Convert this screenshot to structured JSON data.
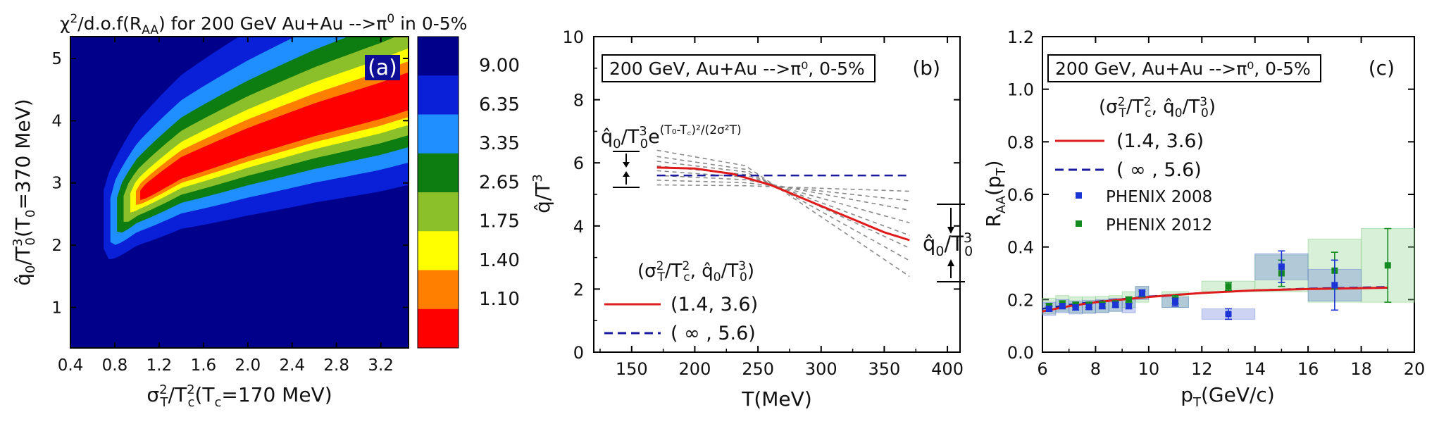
{
  "panel_a": {
    "title_chi": "χ",
    "title_rest": "/d.o.f(R",
    "title_sub": "AA",
    "title_tail": ") for 200 GeV Au+Au -->π",
    "title_sup0": "0",
    "title_end": " in 0-5%",
    "panel_label": "(a)",
    "xlabel": "σ²T/T²c(Tc=170 MeV)",
    "ylabel": "q̂0/T³0(T0=370 MeV)",
    "xticks": [
      "0.4",
      "0.8",
      "1.2",
      "1.6",
      "2.0",
      "2.4",
      "2.8",
      "3.2"
    ],
    "yticks": [
      "1",
      "2",
      "3",
      "4",
      "5"
    ],
    "colorbar_labels": [
      "9.00",
      "6.35",
      "3.35",
      "2.65",
      "1.75",
      "1.40",
      "1.10"
    ],
    "colorbar_colors": [
      "#00008b",
      "#0a1fd8",
      "#1f8fff",
      "#0d7d12",
      "#8cc02a",
      "#ffff00",
      "#ff8000",
      "#ff0000"
    ]
  },
  "panel_b": {
    "box_label": "200 GeV, Au+Au -->π⁰, 0-5%",
    "panel_label": "(b)",
    "xlabel": "T(MeV)",
    "ylabel": "q̂/T³",
    "xticks": [
      "150",
      "200",
      "250",
      "300",
      "350",
      "400"
    ],
    "yticks": [
      "0",
      "2",
      "4",
      "6",
      "8",
      "10"
    ],
    "annotation_left": "q̂0/T³0e(T0-Tc)²/(2σ²T)",
    "annotation_right": "q̂0/T³0",
    "legend_title": "(σ²T/T²c, q̂0/T³0)",
    "legend_items": [
      "(1.4, 3.6)",
      "( ∞ , 5.6)"
    ]
  },
  "panel_c": {
    "box_label": "200 GeV, Au+Au -->π⁰, 0-5%",
    "panel_label": "(c)",
    "xlabel": "pT(GeV/c)",
    "ylabel": "RAA(pT)",
    "xticks": [
      "6",
      "8",
      "10",
      "12",
      "14",
      "16",
      "18",
      "20"
    ],
    "yticks": [
      "0.0",
      "0.2",
      "0.4",
      "0.6",
      "0.8",
      "1.0",
      "1.2"
    ],
    "legend_title": "(σ²T/T²c, q̂0/T³0)",
    "legend_items": [
      "(1.4, 3.6)",
      "( ∞ , 5.6)",
      "PHENIX 2008",
      "PHENIX 2012"
    ]
  },
  "chart_data": [
    {
      "type": "heatmap",
      "title": "χ²/d.o.f(RAA) for 200 GeV Au+Au -->π0 in 0-5%",
      "xlabel": "σ²T/T²c(Tc=170 MeV)",
      "ylabel": "q̂0/T³0(T0=370 MeV)",
      "xlim": [
        0.4,
        3.45
      ],
      "ylim": [
        0.35,
        5.35
      ],
      "colorbar_levels": [
        1.1,
        1.4,
        1.75,
        2.65,
        3.35,
        6.35,
        9.0
      ],
      "minimum_valley": {
        "x": [
          0.75,
          1.0,
          1.4,
          2.0,
          2.6,
          3.2,
          3.45
        ],
        "y": [
          2.3,
          2.75,
          3.2,
          3.6,
          3.95,
          4.25,
          4.4
        ]
      }
    },
    {
      "type": "line",
      "xlabel": "T(MeV)",
      "ylabel": "q̂/T³",
      "xlim": [
        120,
        410
      ],
      "ylim": [
        0,
        10
      ],
      "series": [
        {
          "name": "(1.4, 3.6)",
          "x": [
            170,
            200,
            230,
            260,
            290,
            320,
            350,
            370
          ],
          "y": [
            5.85,
            5.82,
            5.65,
            5.3,
            4.8,
            4.3,
            3.8,
            3.55
          ]
        },
        {
          "name": "( ∞ , 5.6)",
          "x": [
            170,
            370
          ],
          "y": [
            5.6,
            5.6
          ]
        }
      ],
      "grey_band_curves": [
        {
          "y0": 6.4,
          "y1": 2.4
        },
        {
          "y0": 6.2,
          "y1": 2.9
        },
        {
          "y0": 6.05,
          "y1": 3.3
        },
        {
          "y0": 5.9,
          "y1": 3.7
        },
        {
          "y0": 5.75,
          "y1": 4.1
        },
        {
          "y0": 5.6,
          "y1": 4.5
        },
        {
          "y0": 5.45,
          "y1": 4.8
        },
        {
          "y0": 5.3,
          "y1": 5.1
        }
      ]
    },
    {
      "type": "scatter",
      "xlabel": "pT(GeV/c)",
      "ylabel": "RAA(pT)",
      "xlim": [
        6,
        20
      ],
      "ylim": [
        0,
        1.2
      ],
      "series": [
        {
          "name": "(1.4, 3.6)",
          "x": [
            6,
            7,
            8,
            9,
            10,
            12,
            14,
            16,
            19
          ],
          "y": [
            0.155,
            0.175,
            0.19,
            0.2,
            0.21,
            0.225,
            0.235,
            0.24,
            0.245
          ]
        },
        {
          "name": "( ∞ , 5.6)",
          "x": [
            6,
            7,
            8,
            9,
            10,
            12,
            14,
            16,
            19
          ],
          "y": [
            0.165,
            0.18,
            0.192,
            0.202,
            0.212,
            0.225,
            0.235,
            0.242,
            0.248
          ]
        },
        {
          "name": "PHENIX 2008",
          "x": [
            6.25,
            6.75,
            7.25,
            7.75,
            8.25,
            8.75,
            9.25,
            9.75,
            11.0,
            13.0,
            15.0,
            17.0
          ],
          "y": [
            0.165,
            0.175,
            0.17,
            0.172,
            0.175,
            0.18,
            0.175,
            0.225,
            0.19,
            0.145,
            0.325,
            0.255
          ]
        },
        {
          "name": "PHENIX 2012",
          "x": [
            6.25,
            6.75,
            7.25,
            7.75,
            8.25,
            8.75,
            9.25,
            9.75,
            11.0,
            13.0,
            15.0,
            17.0,
            19.0
          ],
          "y": [
            0.175,
            0.185,
            0.18,
            0.18,
            0.182,
            0.185,
            0.2,
            0.22,
            0.2,
            0.25,
            0.3,
            0.31,
            0.33
          ]
        }
      ]
    }
  ]
}
